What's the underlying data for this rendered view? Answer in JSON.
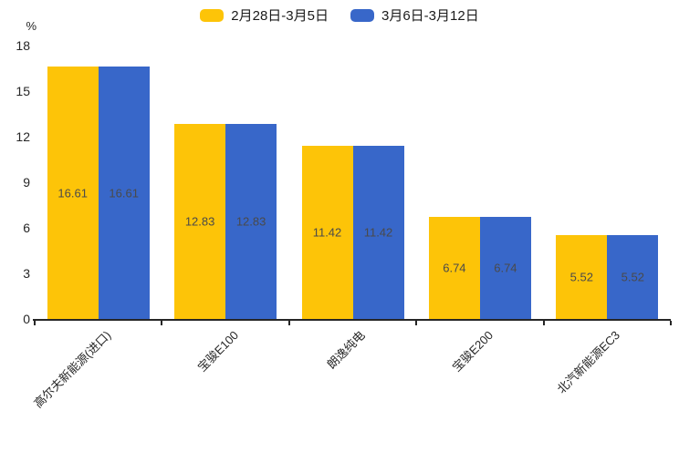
{
  "chart_data": {
    "type": "bar",
    "title": "",
    "unit_label": "%",
    "categories": [
      "高尔夫新能源(进口)",
      "宝骏E100",
      "朗逸纯电",
      "宝骏E200",
      "北汽新能源EC3"
    ],
    "series": [
      {
        "name": "2月28日-3月5日",
        "color": "#fdc408",
        "values": [
          16.61,
          12.83,
          11.42,
          6.74,
          5.52
        ]
      },
      {
        "name": "3月6日-3月12日",
        "color": "#3867c9",
        "values": [
          16.61,
          12.83,
          11.42,
          6.74,
          5.52
        ]
      }
    ],
    "ylim": [
      0,
      18
    ],
    "yticks": [
      0,
      3,
      6,
      9,
      12,
      15,
      18
    ],
    "grid": false,
    "legend_position": "top-center",
    "value_labels": "inside-center",
    "axis_color": "#262626",
    "value_label_color": "#4a4a4a"
  }
}
